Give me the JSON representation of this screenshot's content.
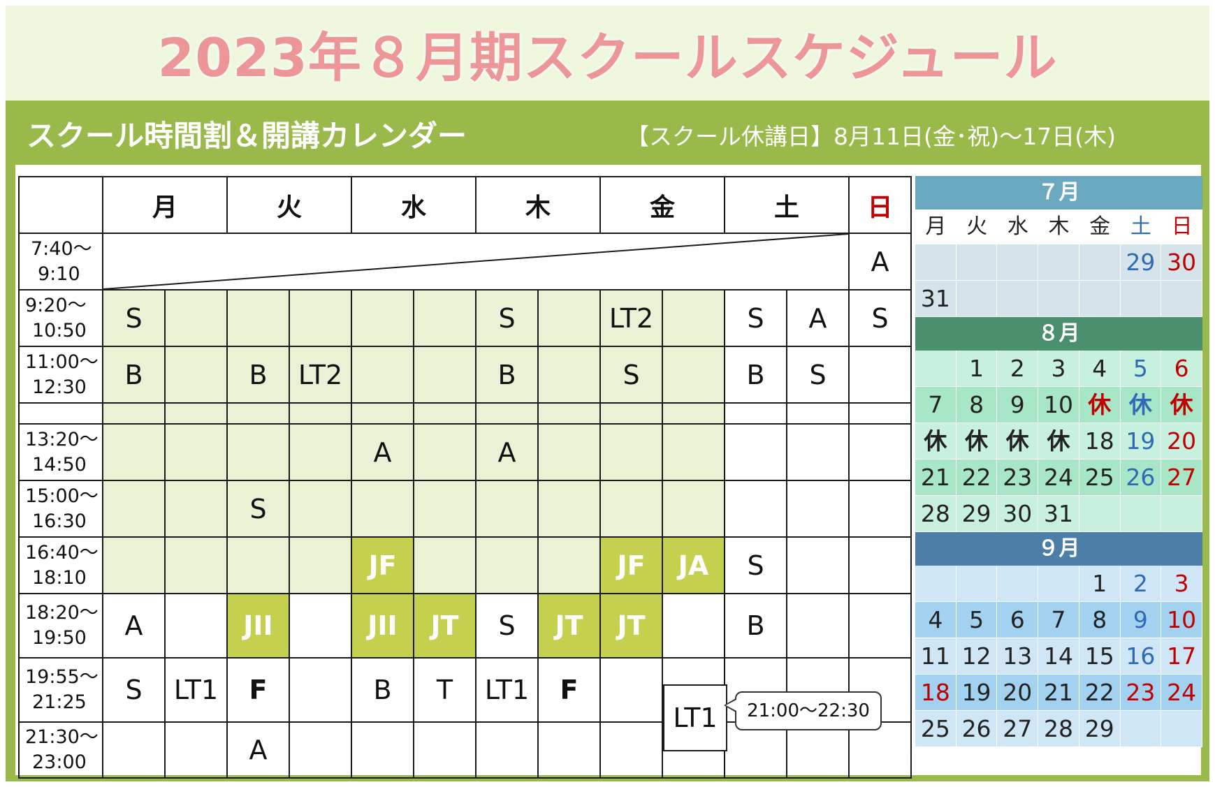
{
  "title": "2023年８月期スクールスケジュール",
  "subtitle": "スクール時間割＆開講カレンダー",
  "closure_notice": "【スクール休講日】8月11日(金･祝)～17日(木)",
  "colors": {
    "title_pink": "#ec9698",
    "frame_green": "#99b94a",
    "cell_light_green": "#eaf2d5",
    "cell_olive": "#c4d04e",
    "sunday_red": "#c00000",
    "saturday_blue": "#2f6ab4",
    "july_header": "#6aa8bf",
    "august_header": "#4c8f6e",
    "september_header": "#4d7ea8"
  },
  "schedule": {
    "days": [
      "月",
      "火",
      "水",
      "木",
      "金",
      "土",
      "日"
    ],
    "times": [
      "7:40～\n9:10",
      "9:20～\n10:50",
      "11:00～\n12:30",
      "",
      "13:20～\n14:50",
      "15:00～\n16:30",
      "16:40～\n18:10",
      "18:20～\n19:50",
      "19:55～\n21:25",
      "21:30～\n23:00"
    ],
    "rows": [
      [
        "A"
      ],
      [
        "S",
        "",
        "",
        "",
        "",
        "",
        "S",
        "",
        "LT2",
        "",
        "S",
        "A",
        "S"
      ],
      [
        "B",
        "",
        "B",
        "LT2",
        "",
        "",
        "B",
        "",
        "S",
        "",
        "B",
        "S",
        ""
      ],
      [],
      [
        "",
        "",
        "",
        "",
        "A",
        "",
        "A",
        "",
        "",
        "",
        "",
        "",
        ""
      ],
      [
        "",
        "",
        "S",
        "",
        "",
        "",
        "",
        "",
        "",
        "",
        "",
        "",
        ""
      ],
      [
        "",
        "",
        "",
        "",
        "JF",
        "",
        "",
        "",
        "JF",
        "JA",
        "S",
        "",
        ""
      ],
      [
        "A",
        "",
        "JII",
        "",
        "JII",
        "JT",
        "S",
        "JT",
        "JT",
        "",
        "B",
        "",
        ""
      ],
      [
        "S",
        "LT1",
        "F",
        "",
        "B",
        "T",
        "LT1",
        "F",
        "",
        "",
        "",
        "",
        ""
      ],
      [
        "",
        "",
        "A",
        "",
        "",
        "",
        "",
        "",
        "",
        "",
        "",
        "",
        ""
      ]
    ],
    "late_class": "LT1",
    "late_class_time": "21:00～22:30"
  },
  "calendar": {
    "weekdays": [
      "月",
      "火",
      "水",
      "木",
      "金",
      "土",
      "日"
    ],
    "months": [
      {
        "label": "７月",
        "weeks": [
          [
            "",
            "",
            "",
            "",
            "",
            "29",
            "30"
          ],
          [
            "31",
            "",
            "",
            "",
            "",
            "",
            ""
          ]
        ]
      },
      {
        "label": "８月",
        "weeks": [
          [
            "",
            "1",
            "2",
            "3",
            "4",
            "5",
            "6"
          ],
          [
            "7",
            "8",
            "9",
            "10",
            "休",
            "休",
            "休"
          ],
          [
            "休",
            "休",
            "休",
            "休",
            "18",
            "19",
            "20"
          ],
          [
            "21",
            "22",
            "23",
            "24",
            "25",
            "26",
            "27"
          ],
          [
            "28",
            "29",
            "30",
            "31",
            "",
            "",
            ""
          ]
        ]
      },
      {
        "label": "９月",
        "weeks": [
          [
            "",
            "",
            "",
            "",
            "1",
            "2",
            "3"
          ],
          [
            "4",
            "5",
            "6",
            "7",
            "8",
            "9",
            "10"
          ],
          [
            "11",
            "12",
            "13",
            "14",
            "15",
            "16",
            "17"
          ],
          [
            "18",
            "19",
            "20",
            "21",
            "22",
            "23",
            "24"
          ],
          [
            "25",
            "26",
            "27",
            "28",
            "29",
            "",
            ""
          ]
        ]
      }
    ]
  }
}
